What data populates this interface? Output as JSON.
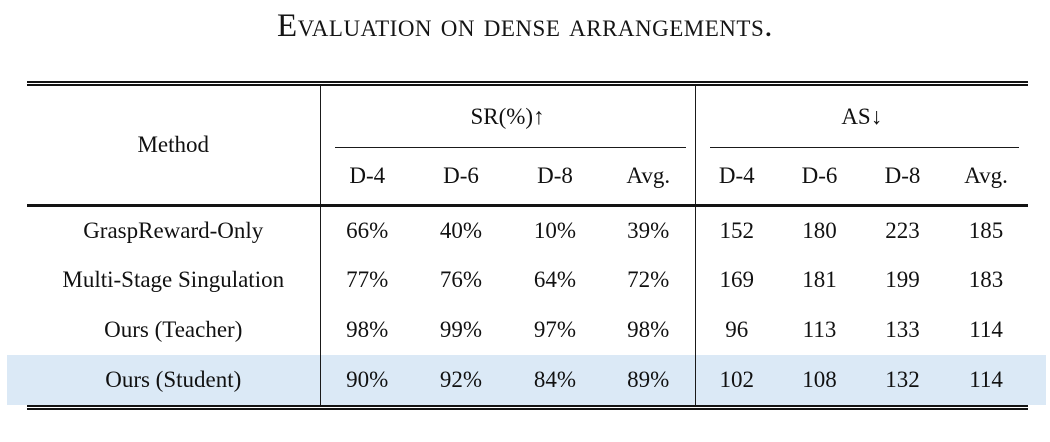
{
  "title": "Evaluation on dense arrangements.",
  "table": {
    "method_header": "Method",
    "groups": [
      {
        "label": "SR(%)↑",
        "subcolumns": [
          "D-4",
          "D-6",
          "D-8",
          "Avg."
        ]
      },
      {
        "label": "AS↓",
        "subcolumns": [
          "D-4",
          "D-6",
          "D-8",
          "Avg."
        ]
      }
    ],
    "rows": [
      {
        "method": "GraspReward-Only",
        "sr": [
          "66%",
          "40%",
          "10%",
          "39%"
        ],
        "as": [
          "152",
          "180",
          "223",
          "185"
        ],
        "highlighted": false
      },
      {
        "method": "Multi-Stage Singulation",
        "sr": [
          "77%",
          "76%",
          "64%",
          "72%"
        ],
        "as": [
          "169",
          "181",
          "199",
          "183"
        ],
        "highlighted": false
      },
      {
        "method": "Ours (Teacher)",
        "sr": [
          "98%",
          "99%",
          "97%",
          "98%"
        ],
        "as": [
          "96",
          "113",
          "133",
          "114"
        ],
        "highlighted": false
      },
      {
        "method": "Ours (Student)",
        "sr": [
          "90%",
          "92%",
          "84%",
          "89%"
        ],
        "as": [
          "102",
          "108",
          "132",
          "114"
        ],
        "highlighted": true
      }
    ],
    "highlight_color": "#dbe9f6",
    "text_color": "#111111"
  }
}
